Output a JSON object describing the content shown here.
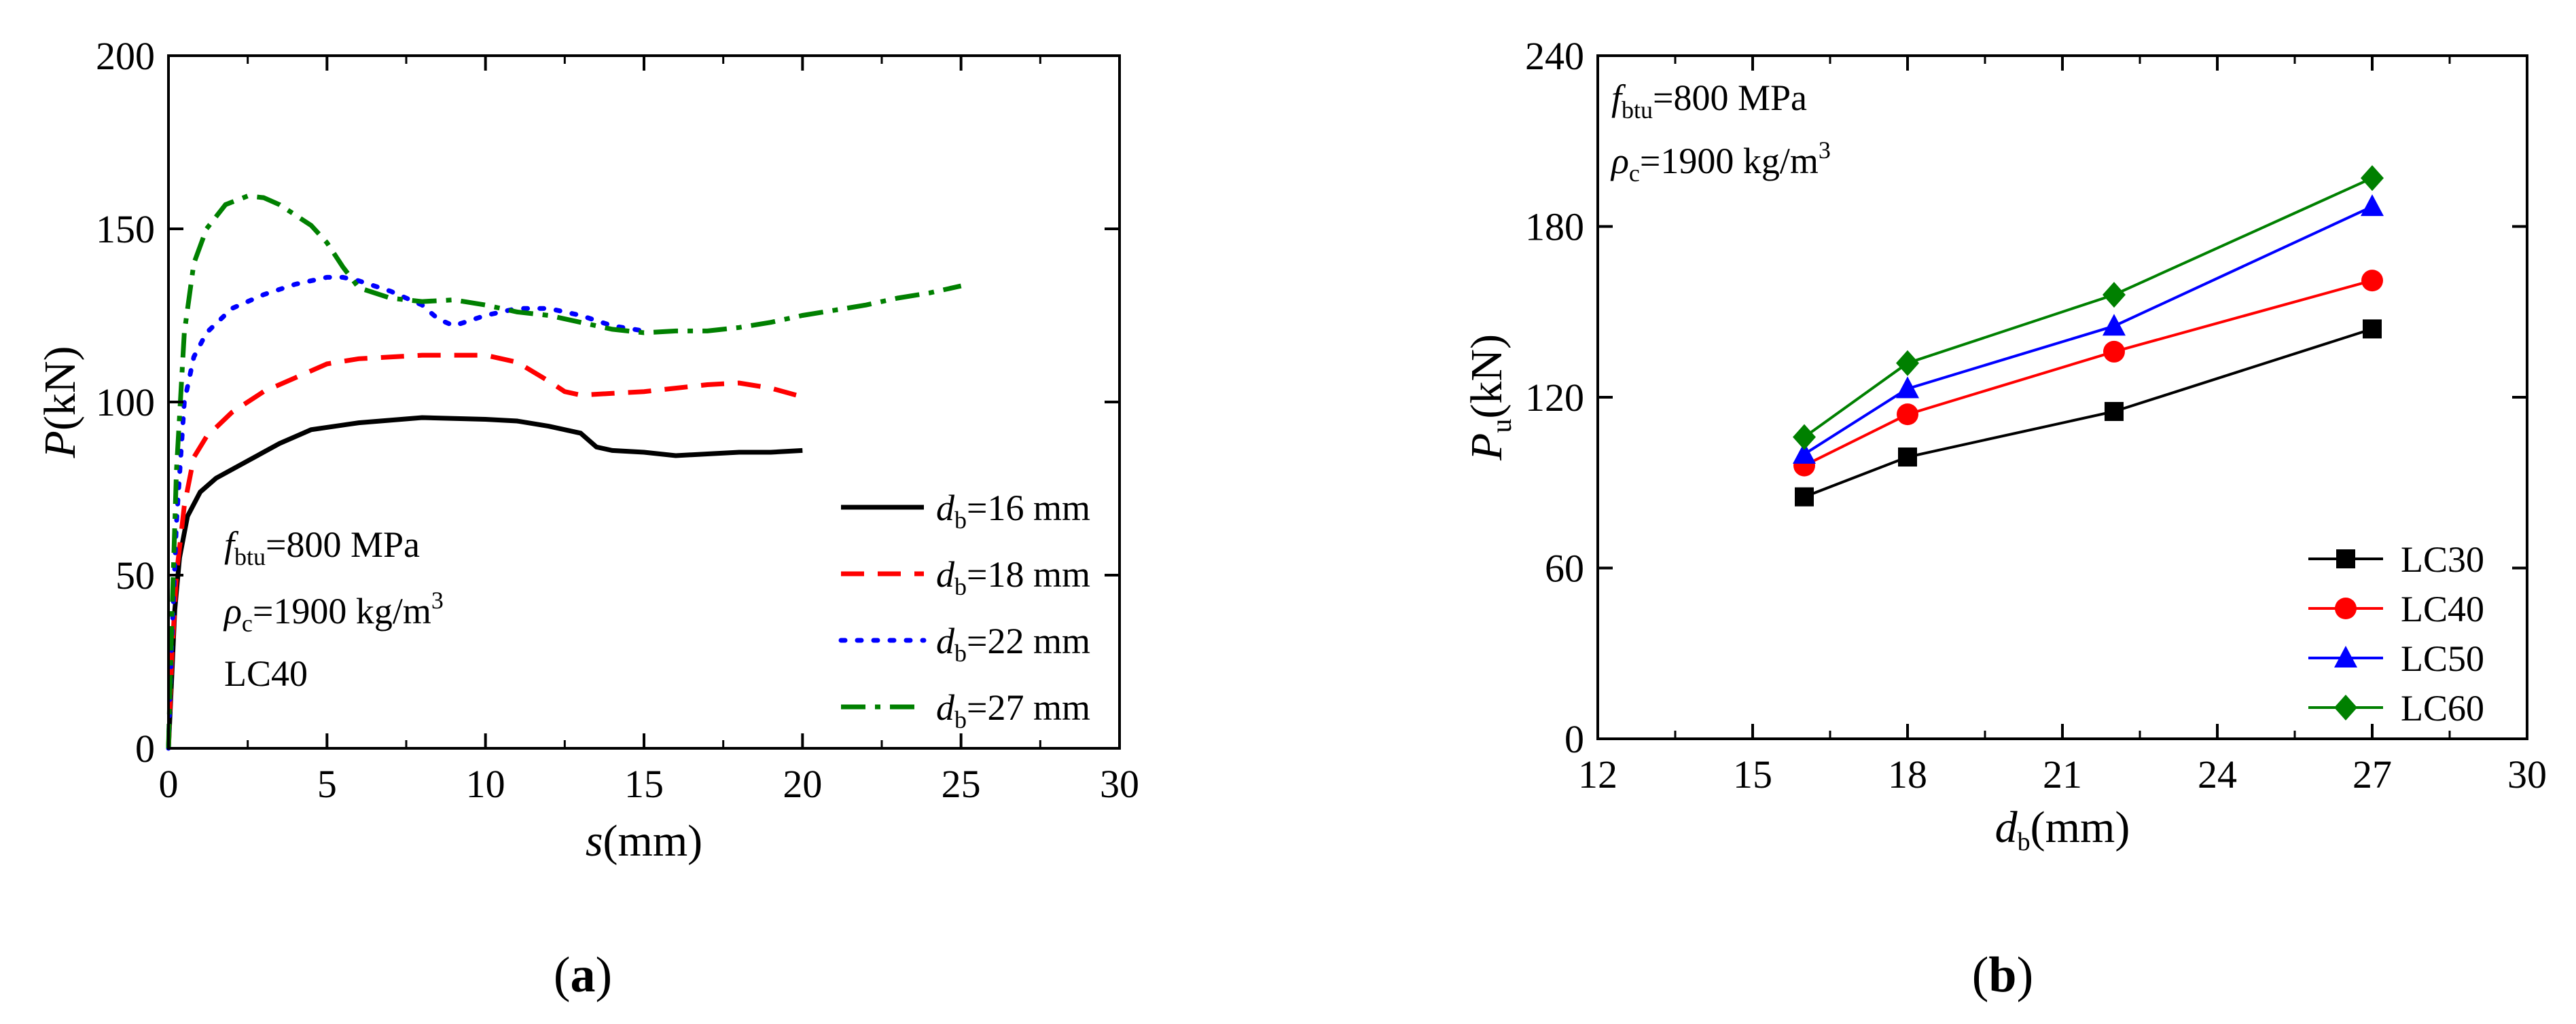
{
  "colors": {
    "black": "#000000",
    "red": "#ff0000",
    "blue": "#0000ff",
    "green": "#008000"
  },
  "panel_labels": {
    "a": "a",
    "b": "b"
  },
  "chart_data": [
    {
      "id": "a",
      "type": "line",
      "xlabel_var": "s",
      "xlabel_unit": "(mm)",
      "ylabel_var": "P",
      "ylabel_unit": "(kN)",
      "xlim": [
        0,
        30
      ],
      "ylim": [
        0,
        200
      ],
      "x_ticks": [
        0,
        5,
        10,
        15,
        20,
        25,
        30
      ],
      "y_ticks": [
        0,
        50,
        100,
        150,
        200
      ],
      "annotations": {
        "fbtu": {
          "symbol": "f",
          "sub": "btu",
          "rest": "=800 MPa"
        },
        "rho": {
          "symbol": "ρ",
          "sub": "c",
          "rest": "=1900 kg/m",
          "sup": "3"
        },
        "grade": "LC40"
      },
      "series": [
        {
          "symbol": "d",
          "sub": "b",
          "rest": "=16 mm",
          "color": "#000000",
          "dash": "solid",
          "points": [
            [
              0,
              0
            ],
            [
              0.1,
              20
            ],
            [
              0.2,
              40
            ],
            [
              0.35,
              55
            ],
            [
              0.6,
              67
            ],
            [
              1.0,
              74
            ],
            [
              1.5,
              78
            ],
            [
              2.5,
              83
            ],
            [
              3.5,
              88
            ],
            [
              4.5,
              92
            ],
            [
              6,
              94
            ],
            [
              8,
              95.5
            ],
            [
              10,
              95
            ],
            [
              11,
              94.5
            ],
            [
              12,
              93
            ],
            [
              13,
              91
            ],
            [
              13.5,
              87
            ],
            [
              14,
              86
            ],
            [
              15,
              85.5
            ],
            [
              16,
              84.5
            ],
            [
              17,
              85
            ],
            [
              18,
              85.5
            ],
            [
              19,
              85.5
            ],
            [
              20,
              86
            ]
          ]
        },
        {
          "symbol": "d",
          "sub": "b",
          "rest": "=18 mm",
          "color": "#ff0000",
          "dash": "dashed",
          "points": [
            [
              0,
              0
            ],
            [
              0.1,
              25
            ],
            [
              0.25,
              50
            ],
            [
              0.5,
              70
            ],
            [
              0.8,
              84
            ],
            [
              1.2,
              90
            ],
            [
              2,
              97
            ],
            [
              3,
              103
            ],
            [
              4,
              107
            ],
            [
              5,
              111
            ],
            [
              6,
              112.5
            ],
            [
              8,
              113.5
            ],
            [
              10,
              113.5
            ],
            [
              11,
              111.5
            ],
            [
              12,
              106
            ],
            [
              12.5,
              103
            ],
            [
              13,
              102
            ],
            [
              14,
              102.5
            ],
            [
              15,
              103
            ],
            [
              16,
              104
            ],
            [
              17,
              105
            ],
            [
              18,
              105.5
            ],
            [
              19,
              104
            ],
            [
              20,
              101.5
            ]
          ]
        },
        {
          "symbol": "d",
          "sub": "b",
          "rest": "=22 mm",
          "color": "#0000ff",
          "dash": "dotted",
          "points": [
            [
              0,
              0
            ],
            [
              0.1,
              30
            ],
            [
              0.25,
              65
            ],
            [
              0.5,
              100
            ],
            [
              0.8,
              113
            ],
            [
              1.2,
              120
            ],
            [
              2,
              127
            ],
            [
              3,
              131
            ],
            [
              4,
              134
            ],
            [
              5,
              136
            ],
            [
              5.5,
              136
            ],
            [
              6,
              135
            ],
            [
              7,
              132
            ],
            [
              8,
              128
            ],
            [
              8.5,
              124
            ],
            [
              9,
              122
            ],
            [
              10,
              125
            ],
            [
              11,
              127
            ],
            [
              12,
              127
            ],
            [
              13,
              125
            ],
            [
              14,
              122
            ],
            [
              15,
              120.5
            ]
          ]
        },
        {
          "symbol": "d",
          "sub": "b",
          "rest": "=27 mm",
          "color": "#008000",
          "dash": "dashdot",
          "points": [
            [
              0,
              0
            ],
            [
              0.1,
              35
            ],
            [
              0.25,
              80
            ],
            [
              0.5,
              120
            ],
            [
              0.8,
              140
            ],
            [
              1.2,
              150
            ],
            [
              1.8,
              157
            ],
            [
              2.5,
              159.5
            ],
            [
              3,
              159
            ],
            [
              3.5,
              157
            ],
            [
              4.5,
              151
            ],
            [
              5,
              146
            ],
            [
              5.5,
              139
            ],
            [
              6,
              133
            ],
            [
              7,
              130
            ],
            [
              8,
              129
            ],
            [
              9,
              129.5
            ],
            [
              10,
              128
            ],
            [
              11,
              126
            ],
            [
              12,
              125
            ],
            [
              13,
              123
            ],
            [
              14,
              121
            ],
            [
              15,
              120
            ],
            [
              16,
              120.5
            ],
            [
              17,
              120.5
            ],
            [
              18,
              121.5
            ],
            [
              19,
              123
            ],
            [
              20,
              125
            ],
            [
              21,
              126.5
            ],
            [
              22,
              128
            ],
            [
              23,
              130
            ],
            [
              24,
              131.5
            ],
            [
              25,
              133.5
            ]
          ]
        }
      ]
    },
    {
      "id": "b",
      "type": "line",
      "xlabel_var": "d",
      "xlabel_sub": "b",
      "xlabel_unit": "(mm)",
      "ylabel_var": "P",
      "ylabel_sub": "u",
      "ylabel_unit": "(kN)",
      "xlim": [
        12,
        30
      ],
      "ylim": [
        0,
        240
      ],
      "x_ticks": [
        12,
        15,
        18,
        21,
        24,
        27,
        30
      ],
      "y_ticks": [
        0,
        60,
        120,
        180,
        240
      ],
      "x_values": [
        16,
        18,
        22,
        27
      ],
      "annotations": {
        "fbtu": {
          "symbol": "f",
          "sub": "btu",
          "rest": "=800 MPa"
        },
        "rho": {
          "symbol": "ρ",
          "sub": "c",
          "rest": "=1900 kg/m",
          "sup": "3"
        }
      },
      "series": [
        {
          "name": "LC30",
          "color": "#000000",
          "marker": "square",
          "values": [
            85,
            99,
            115,
            144
          ]
        },
        {
          "name": "LC40",
          "color": "#ff0000",
          "marker": "circle",
          "values": [
            96,
            114,
            136,
            161
          ]
        },
        {
          "name": "LC50",
          "color": "#0000ff",
          "marker": "triangle",
          "values": [
            100,
            123,
            145,
            187
          ]
        },
        {
          "name": "LC60",
          "color": "#008000",
          "marker": "diamond",
          "values": [
            106,
            132,
            156,
            197
          ]
        }
      ]
    }
  ]
}
